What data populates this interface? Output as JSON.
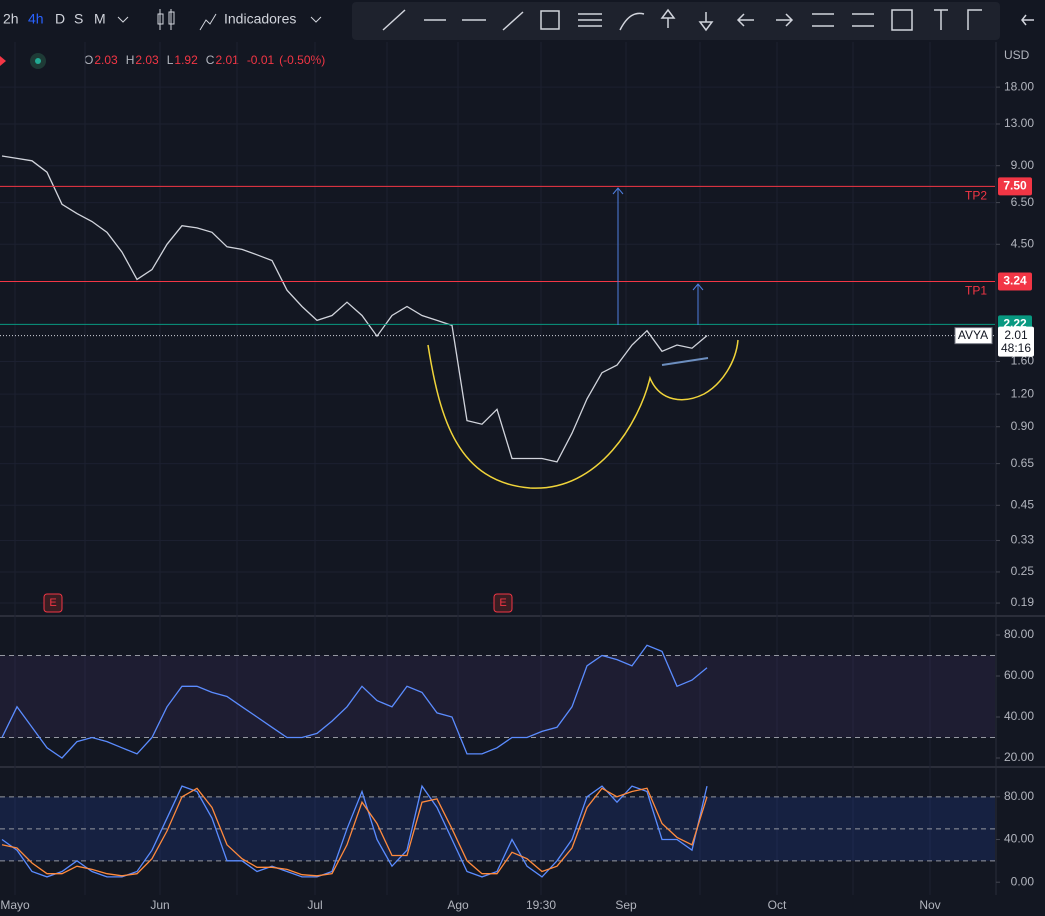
{
  "toolbar": {
    "intervals": [
      "2h",
      "4h",
      "D",
      "S",
      "M"
    ],
    "indicators": "Indicadores"
  },
  "legend": {
    "open": {
      "key": "O",
      "value": 2.03
    },
    "high": {
      "key": "H",
      "value": 2.03
    },
    "low": {
      "key": "L",
      "value": 1.92
    },
    "close": {
      "key": "C",
      "value": 2.01
    },
    "change": "-0.01",
    "change_pct": "(-0.50%)"
  },
  "currency": "USD",
  "x_labels": [
    "Mayo",
    "Jun",
    "Jul",
    "Ago",
    "19:30",
    "Sep",
    "Oct",
    "Nov"
  ],
  "earnings_marks": [
    "E",
    "E"
  ],
  "chart_data": [
    {
      "type": "line",
      "name": "price",
      "log_scale": true,
      "grid": true,
      "color": "#d1d4dc",
      "ylim": [
        0.171,
        26.1
      ],
      "yticks": [
        {
          "value": 18,
          "label": "18.00"
        },
        {
          "value": 13,
          "label": "13.00"
        },
        {
          "value": 9,
          "label": "9.00"
        },
        {
          "value": 6.5,
          "label": "6.50"
        },
        {
          "value": 4.5,
          "label": "4.50"
        },
        {
          "value": 1.6,
          "label": "1.60"
        },
        {
          "value": 1.2,
          "label": "1.20"
        },
        {
          "value": 0.9,
          "label": "0.90"
        },
        {
          "value": 0.65,
          "label": "0.65"
        },
        {
          "value": 0.45,
          "label": "0.45"
        },
        {
          "value": 0.33,
          "label": "0.33"
        },
        {
          "value": 0.25,
          "label": "0.25"
        },
        {
          "value": 0.19,
          "label": "0.19"
        }
      ],
      "values": [
        9.8,
        9.6,
        9.4,
        8.5,
        6.4,
        5.9,
        5.5,
        5.0,
        4.2,
        3.3,
        3.6,
        4.5,
        5.3,
        5.2,
        5.0,
        4.4,
        4.3,
        4.1,
        3.9,
        3.0,
        2.6,
        2.3,
        2.4,
        2.7,
        2.4,
        2.0,
        2.4,
        2.6,
        2.4,
        2.3,
        2.2,
        0.95,
        0.92,
        1.05,
        0.68,
        0.68,
        0.68,
        0.66,
        0.85,
        1.15,
        1.45,
        1.55,
        1.85,
        2.1,
        1.75,
        1.85,
        1.8,
        2.01
      ],
      "price_lines": [
        {
          "name": "TP2",
          "price": {
            "value": 7.5,
            "label": "7.50"
          },
          "color": "#f23645"
        },
        {
          "name": "TP1",
          "price": {
            "value": 3.24,
            "label": "3.24"
          },
          "color": "#f23645"
        },
        {
          "price": {
            "value": 2.22,
            "label": "2.22"
          },
          "color": "#089981"
        }
      ],
      "last_price": {
        "symbol": "AVYA",
        "price": {
          "value": 2.01,
          "label": "2.01"
        },
        "countdown": "48:16"
      }
    },
    {
      "type": "line",
      "name": "rsi",
      "color": "#5b8cff",
      "ylim": [
        16.1,
        88.3
      ],
      "yticks": [
        {
          "value": 80,
          "label": "80.00"
        },
        {
          "value": 60,
          "label": "60.00"
        },
        {
          "value": 40,
          "label": "40.00"
        },
        {
          "value": 20,
          "label": "20.00"
        }
      ],
      "bands": [
        30,
        70
      ],
      "values": [
        30,
        45,
        35,
        25,
        20,
        28,
        30,
        28,
        25,
        22,
        30,
        45,
        55,
        55,
        52,
        50,
        45,
        40,
        35,
        30,
        30,
        32,
        38,
        45,
        55,
        48,
        45,
        55,
        52,
        42,
        40,
        22,
        22,
        25,
        30,
        30,
        33,
        35,
        45,
        65,
        70,
        68,
        65,
        75,
        72,
        55,
        58,
        64
      ]
    },
    {
      "type": "line",
      "name": "stochastic",
      "ylim": [
        -12,
        107
      ],
      "yticks": [
        {
          "value": 80,
          "label": "80.00"
        },
        {
          "value": 40,
          "label": "40.00"
        },
        {
          "value": 0,
          "label": "0.00"
        }
      ],
      "bands": [
        20,
        50,
        80
      ],
      "series": [
        {
          "color": "#5b8cff",
          "values": [
            40,
            30,
            10,
            5,
            10,
            20,
            10,
            5,
            5,
            10,
            30,
            60,
            90,
            85,
            60,
            20,
            20,
            10,
            15,
            10,
            5,
            5,
            10,
            50,
            85,
            40,
            15,
            30,
            90,
            70,
            40,
            10,
            5,
            10,
            40,
            15,
            5,
            20,
            40,
            80,
            90,
            75,
            90,
            85,
            40,
            40,
            30,
            90
          ]
        },
        {
          "color": "#ff8a3d",
          "values": [
            35,
            32,
            18,
            8,
            8,
            15,
            12,
            8,
            6,
            8,
            22,
            48,
            80,
            88,
            70,
            35,
            22,
            14,
            14,
            12,
            7,
            6,
            8,
            35,
            75,
            55,
            25,
            25,
            75,
            78,
            50,
            20,
            8,
            8,
            28,
            22,
            10,
            15,
            32,
            70,
            88,
            80,
            85,
            88,
            55,
            42,
            35,
            80
          ]
        }
      ]
    }
  ]
}
